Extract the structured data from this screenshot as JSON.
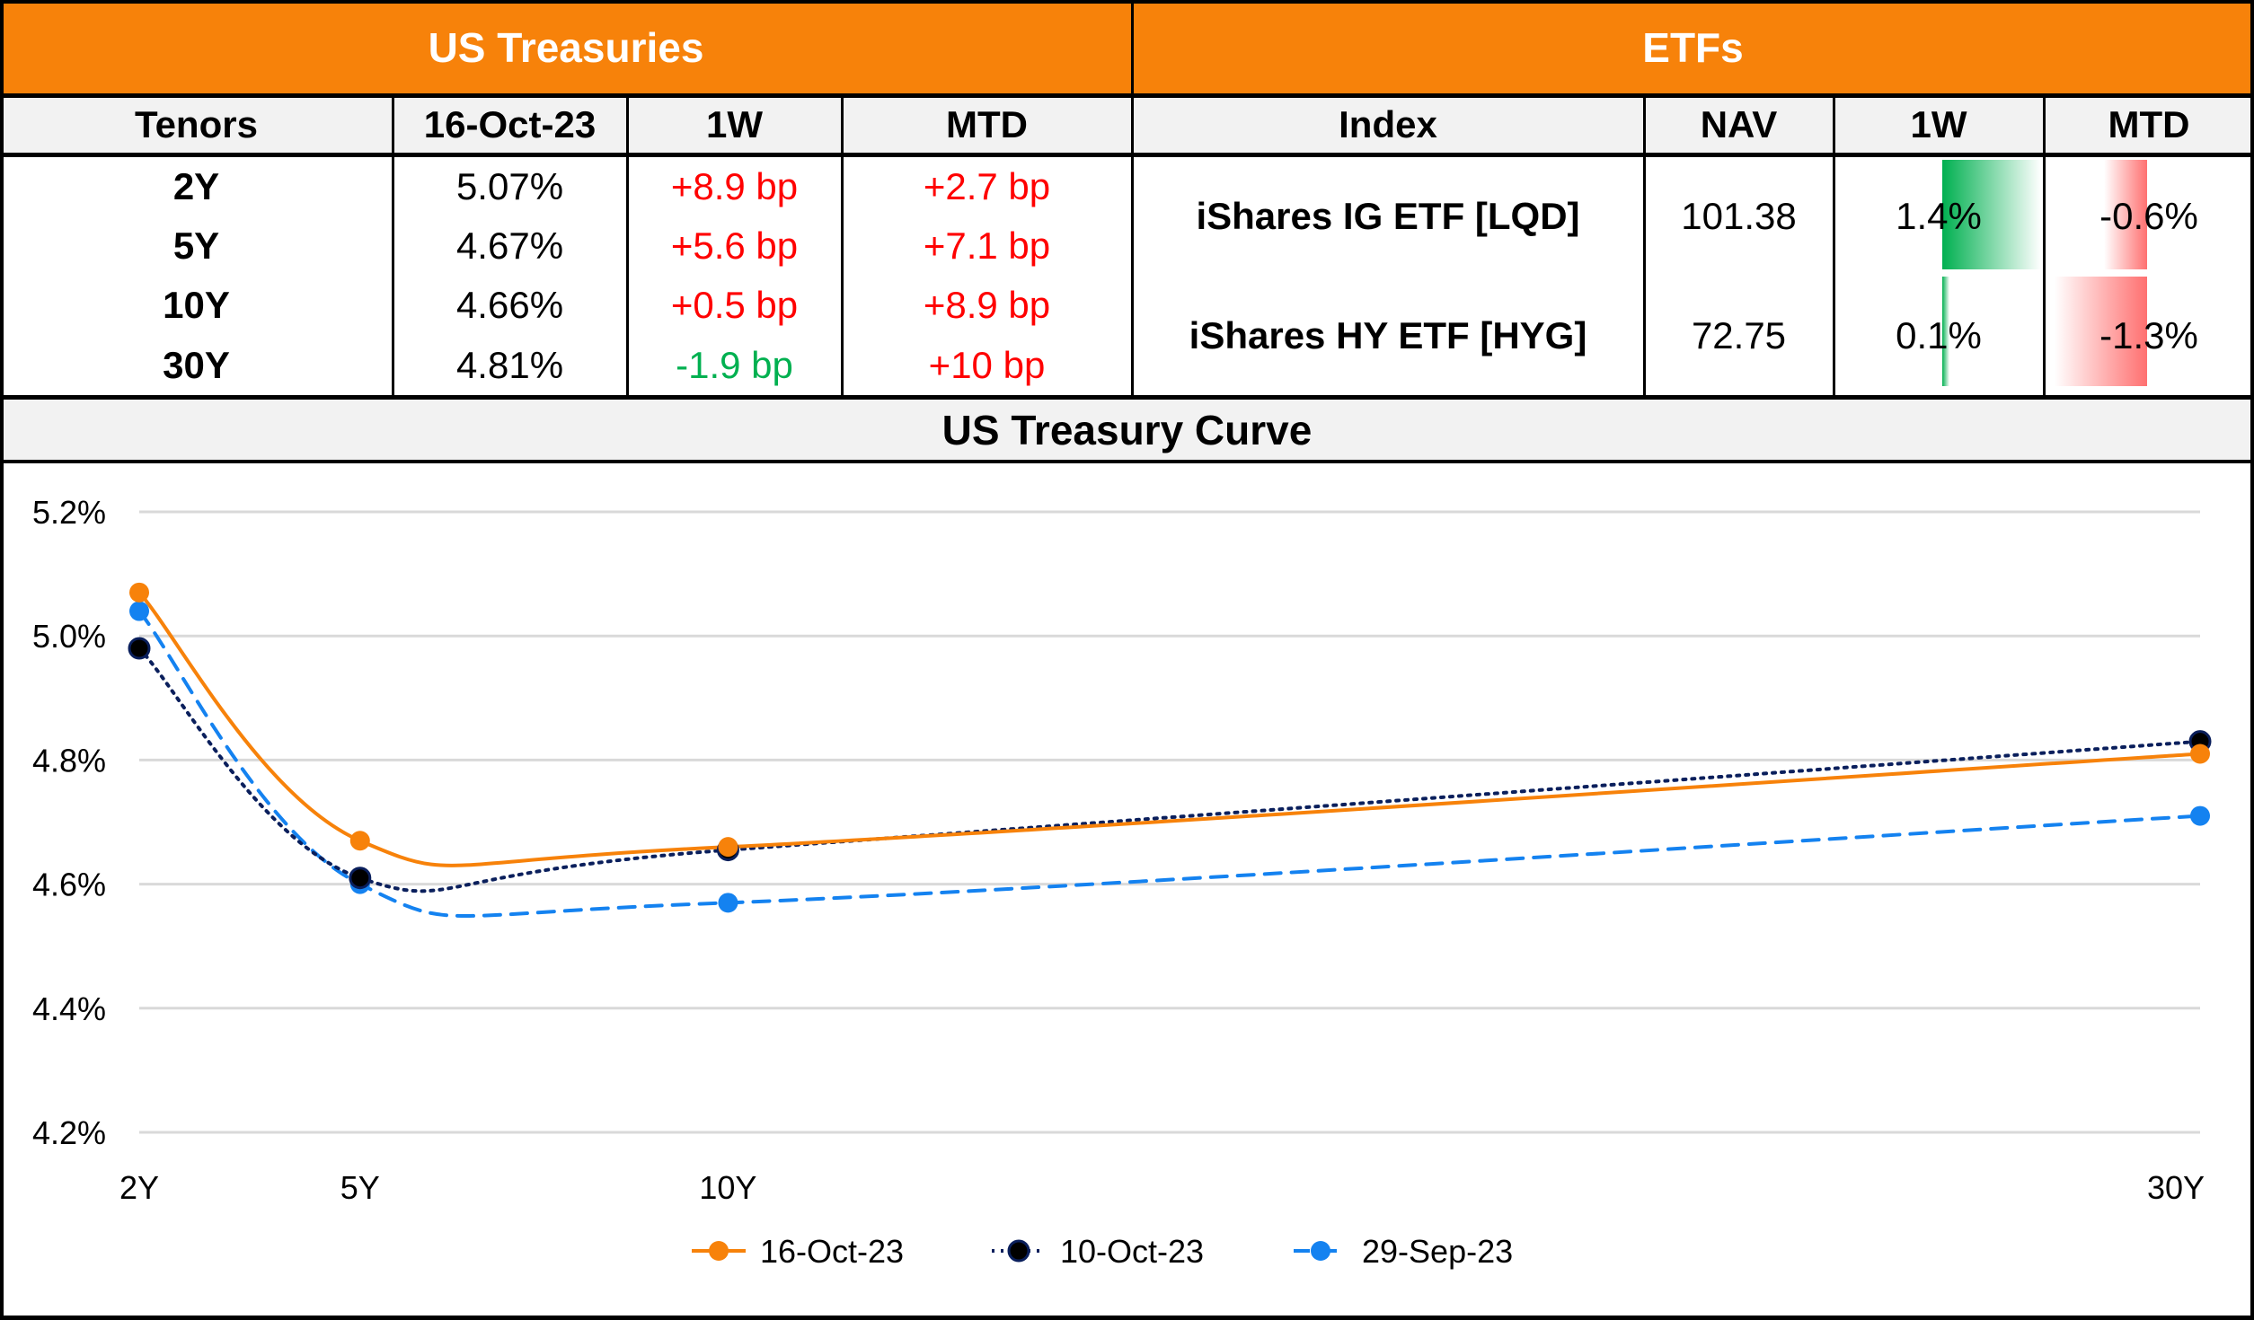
{
  "treasuries": {
    "title": "US Treasuries",
    "headers": [
      "Tenors",
      "16-Oct-23",
      "1W",
      "MTD"
    ],
    "rows": [
      {
        "tenor": "2Y",
        "yield": "5.07%",
        "w1": "+8.9 bp",
        "w1_dir": "up",
        "mtd": "+2.7 bp",
        "mtd_dir": "up"
      },
      {
        "tenor": "5Y",
        "yield": "4.67%",
        "w1": "+5.6 bp",
        "w1_dir": "up",
        "mtd": "+7.1 bp",
        "mtd_dir": "up"
      },
      {
        "tenor": "10Y",
        "yield": "4.66%",
        "w1": "+0.5 bp",
        "w1_dir": "up",
        "mtd": "+8.9 bp",
        "mtd_dir": "up"
      },
      {
        "tenor": "30Y",
        "yield": "4.81%",
        "w1": "-1.9 bp",
        "w1_dir": "down",
        "mtd": "+10 bp",
        "mtd_dir": "up"
      }
    ]
  },
  "etfs": {
    "title": "ETFs",
    "headers": [
      "Index",
      "NAV",
      "1W",
      "MTD"
    ],
    "rows": [
      {
        "index": "iShares IG ETF [LQD]",
        "nav": "101.38",
        "w1": "1.4%",
        "w1_value": 1.4,
        "mtd": "-0.6%",
        "mtd_value": -0.6
      },
      {
        "index": "iShares HY ETF [HYG]",
        "nav": "72.75",
        "w1": "0.1%",
        "w1_value": 0.1,
        "mtd": "-1.3%",
        "mtd_value": -1.3
      }
    ]
  },
  "colors": {
    "header_orange": "#f7820a",
    "header_gray": "#f2f2f2",
    "positive_change": "#ff0000",
    "negative_change": "#00b050",
    "bar_green": "#00b050",
    "bar_red": "#ff7070"
  },
  "chart_data": {
    "type": "line",
    "title": "US Treasury Curve",
    "xlabel": "",
    "ylabel": "",
    "x": [
      2,
      5,
      10,
      30
    ],
    "x_tick_labels": [
      "2Y",
      "5Y",
      "10Y",
      "30Y"
    ],
    "ylim": [
      4.2,
      5.2
    ],
    "y_ticks": [
      4.2,
      4.4,
      4.6,
      4.8,
      5.0,
      5.2
    ],
    "y_tick_labels": [
      "4.2%",
      "4.4%",
      "4.6%",
      "4.8%",
      "5.0%",
      "5.2%"
    ],
    "grid": true,
    "legend_position": "bottom",
    "series": [
      {
        "name": "16-Oct-23",
        "values": [
          5.07,
          4.67,
          4.66,
          4.81
        ],
        "color": "#f7820a",
        "style": "solid"
      },
      {
        "name": "10-Oct-23",
        "values": [
          4.98,
          4.61,
          4.655,
          4.83
        ],
        "color": "#0a1f5c",
        "style": "dotted"
      },
      {
        "name": "29-Sep-23",
        "values": [
          5.04,
          4.6,
          4.57,
          4.71
        ],
        "color": "#1482f0",
        "style": "dashed"
      }
    ]
  }
}
